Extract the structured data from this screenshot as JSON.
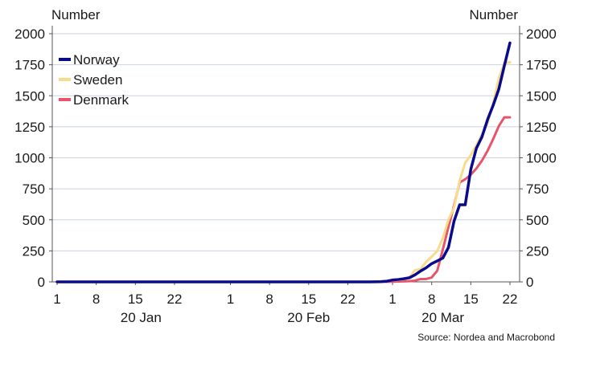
{
  "chart_data": {
    "type": "line",
    "left_axis_label": "Number",
    "right_axis_label": "Number",
    "ylim": [
      0,
      2000
    ],
    "yticks": [
      "0",
      "250",
      "500",
      "750",
      "1000",
      "1250",
      "1500",
      "1750",
      "2000"
    ],
    "xlim": [
      "2020-01-01",
      "2020-03-22"
    ],
    "xtick_labels": [
      {
        "date": "2020-01-01",
        "label": "1"
      },
      {
        "date": "2020-01-08",
        "label": "8"
      },
      {
        "date": "2020-01-15",
        "label": "15"
      },
      {
        "date": "2020-01-22",
        "label": "22"
      },
      {
        "date": "2020-02-01",
        "label": "1"
      },
      {
        "date": "2020-02-08",
        "label": "8"
      },
      {
        "date": "2020-02-15",
        "label": "15"
      },
      {
        "date": "2020-02-22",
        "label": "22"
      },
      {
        "date": "2020-03-01",
        "label": "1"
      },
      {
        "date": "2020-03-08",
        "label": "8"
      },
      {
        "date": "2020-03-15",
        "label": "15"
      },
      {
        "date": "2020-03-22",
        "label": "22"
      }
    ],
    "month_labels": [
      {
        "date": "2020-01-16",
        "label": "20 Jan"
      },
      {
        "date": "2020-02-15",
        "label": "20 Feb"
      },
      {
        "date": "2020-03-10",
        "label": "20 Mar"
      }
    ],
    "grid": "horizontal",
    "legend_position": "top-left",
    "series": [
      {
        "name": "Norway",
        "color": "#0a0a8c",
        "points": [
          [
            "2020-01-01",
            0
          ],
          [
            "2020-02-26",
            0
          ],
          [
            "2020-02-27",
            1
          ],
          [
            "2020-02-28",
            2
          ],
          [
            "2020-02-29",
            6
          ],
          [
            "2020-03-01",
            15
          ],
          [
            "2020-03-02",
            19
          ],
          [
            "2020-03-03",
            25
          ],
          [
            "2020-03-04",
            33
          ],
          [
            "2020-03-05",
            56
          ],
          [
            "2020-03-06",
            87
          ],
          [
            "2020-03-07",
            113
          ],
          [
            "2020-03-08",
            147
          ],
          [
            "2020-03-09",
            169
          ],
          [
            "2020-03-10",
            192
          ],
          [
            "2020-03-11",
            277
          ],
          [
            "2020-03-12",
            489
          ],
          [
            "2020-03-13",
            621
          ],
          [
            "2020-03-14",
            621
          ],
          [
            "2020-03-15",
            907
          ],
          [
            "2020-03-16",
            1077
          ],
          [
            "2020-03-17",
            1169
          ],
          [
            "2020-03-18",
            1308
          ],
          [
            "2020-03-19",
            1423
          ],
          [
            "2020-03-20",
            1552
          ],
          [
            "2020-03-21",
            1742
          ],
          [
            "2020-03-22",
            1926
          ]
        ]
      },
      {
        "name": "Sweden",
        "color": "#f7dc8c",
        "points": [
          [
            "2020-01-01",
            0
          ],
          [
            "2020-01-31",
            1
          ],
          [
            "2020-02-26",
            1
          ],
          [
            "2020-02-27",
            2
          ],
          [
            "2020-02-28",
            7
          ],
          [
            "2020-02-29",
            7
          ],
          [
            "2020-03-01",
            14
          ],
          [
            "2020-03-02",
            15
          ],
          [
            "2020-03-03",
            21
          ],
          [
            "2020-03-04",
            35
          ],
          [
            "2020-03-05",
            94
          ],
          [
            "2020-03-06",
            101
          ],
          [
            "2020-03-07",
            161
          ],
          [
            "2020-03-08",
            203
          ],
          [
            "2020-03-09",
            248
          ],
          [
            "2020-03-10",
            355
          ],
          [
            "2020-03-11",
            500
          ],
          [
            "2020-03-12",
            599
          ],
          [
            "2020-03-13",
            814
          ],
          [
            "2020-03-14",
            961
          ],
          [
            "2020-03-15",
            1022
          ],
          [
            "2020-03-16",
            1103
          ],
          [
            "2020-03-17",
            1190
          ],
          [
            "2020-03-18",
            1279
          ],
          [
            "2020-03-19",
            1439
          ],
          [
            "2020-03-20",
            1639
          ],
          [
            "2020-03-21",
            1763
          ],
          [
            "2020-03-22",
            1770
          ]
        ]
      },
      {
        "name": "Denmark",
        "color": "#e8546a",
        "points": [
          [
            "2020-01-01",
            0
          ],
          [
            "2020-02-26",
            0
          ],
          [
            "2020-02-27",
            1
          ],
          [
            "2020-02-28",
            1
          ],
          [
            "2020-02-29",
            1
          ],
          [
            "2020-03-01",
            2
          ],
          [
            "2020-03-02",
            3
          ],
          [
            "2020-03-03",
            4
          ],
          [
            "2020-03-04",
            6
          ],
          [
            "2020-03-05",
            10
          ],
          [
            "2020-03-06",
            23
          ],
          [
            "2020-03-07",
            23
          ],
          [
            "2020-03-08",
            35
          ],
          [
            "2020-03-09",
            90
          ],
          [
            "2020-03-10",
            262
          ],
          [
            "2020-03-11",
            442
          ],
          [
            "2020-03-12",
            615
          ],
          [
            "2020-03-13",
            801
          ],
          [
            "2020-03-14",
            827
          ],
          [
            "2020-03-15",
            864
          ],
          [
            "2020-03-16",
            914
          ],
          [
            "2020-03-17",
            977
          ],
          [
            "2020-03-18",
            1057
          ],
          [
            "2020-03-19",
            1151
          ],
          [
            "2020-03-20",
            1255
          ],
          [
            "2020-03-21",
            1326
          ],
          [
            "2020-03-22",
            1326
          ]
        ]
      }
    ],
    "source": "Source: Nordea and Macrobond"
  }
}
